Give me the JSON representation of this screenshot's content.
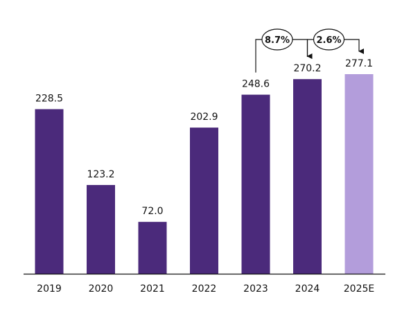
{
  "chart_data": {
    "type": "bar",
    "categories": [
      "2019",
      "2020",
      "2021",
      "2022",
      "2023",
      "2024",
      "2025E"
    ],
    "values": [
      228.5,
      123.2,
      72.0,
      202.9,
      248.6,
      270.2,
      277.1
    ],
    "value_labels": [
      "228.5",
      "123.2",
      "72.0",
      "202.9",
      "248.6",
      "270.2",
      "277.1"
    ],
    "ylim": [
      0,
      277.1
    ],
    "grid": false,
    "legend": "none",
    "colors": {
      "actual": "#4b2a7b",
      "estimate": "#b39ddb",
      "axis": "#111111"
    },
    "annotations": [
      {
        "text": "8.7%",
        "from": "2023",
        "to": "2024"
      },
      {
        "text": "2.6%",
        "from": "2024",
        "to": "2025E"
      }
    ]
  }
}
